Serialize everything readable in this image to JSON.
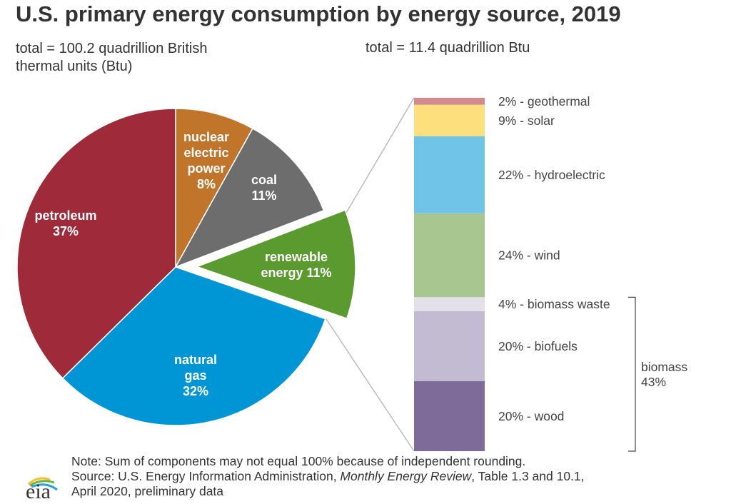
{
  "chart_data": [
    {
      "type": "pie",
      "title": "U.S. primary energy consumption by energy source, 2019",
      "subtitle": "total = 100.2 quadrillion British thermal units (Btu)",
      "slices": [
        {
          "name": "nuclear electric power",
          "label": [
            "nuclear",
            "electric",
            "power",
            "8%"
          ],
          "value": 8,
          "color": "#c0752a"
        },
        {
          "name": "coal",
          "label": [
            "coal",
            "11%"
          ],
          "value": 11,
          "color": "#6d6d6d"
        },
        {
          "name": "renewable energy",
          "label": [
            "renewable",
            "energy 11%"
          ],
          "value": 11,
          "color": "#5b9a2f",
          "exploded": true
        },
        {
          "name": "natural gas",
          "label": [
            "natural",
            "gas",
            "32%"
          ],
          "value": 32,
          "color": "#0096d6"
        },
        {
          "name": "petroleum",
          "label": [
            "petroleum",
            "37%"
          ],
          "value": 37,
          "color": "#9e2a3a"
        }
      ]
    },
    {
      "type": "bar",
      "stacked": true,
      "subtitle": "total = 11.4 quadrillion Btu",
      "segments": [
        {
          "name": "geothermal",
          "label": "2% - geothermal",
          "value": 2,
          "color": "#d18b8f"
        },
        {
          "name": "solar",
          "label": "9% - solar",
          "value": 9,
          "color": "#fddf7e"
        },
        {
          "name": "hydroelectric",
          "label": "22% - hydroelectric",
          "value": 22,
          "color": "#70c4e8"
        },
        {
          "name": "wind",
          "label": "24% - wind",
          "value": 24,
          "color": "#a8c68f"
        },
        {
          "name": "biomass waste",
          "label": "4% - biomass waste",
          "value": 4,
          "color": "#e4e0ea"
        },
        {
          "name": "biofuels",
          "label": "20% - biofuels",
          "value": 20,
          "color": "#c2bbd1"
        },
        {
          "name": "wood",
          "label": "20% - wood",
          "value": 20,
          "color": "#7e6b9a"
        }
      ],
      "group": {
        "label": [
          "biomass",
          "43%"
        ]
      }
    }
  ],
  "header": {
    "title": "U.S. primary energy consumption by energy source, 2019",
    "left_subtitle": "total = 100.2 quadrillion British thermal units (Btu)",
    "right_subtitle": "total = 11.4 quadrillion Btu"
  },
  "footer": {
    "note": "Note: Sum of components may not equal 100% because of independent rounding.",
    "source_prefix": "Source: U.S. Energy Information Administration, ",
    "source_italic": "Monthly Energy Review",
    "source_suffix": ", Table 1.3 and 10.1,",
    "source_line2": "April 2020, preliminary data",
    "logo_text": "eia"
  }
}
